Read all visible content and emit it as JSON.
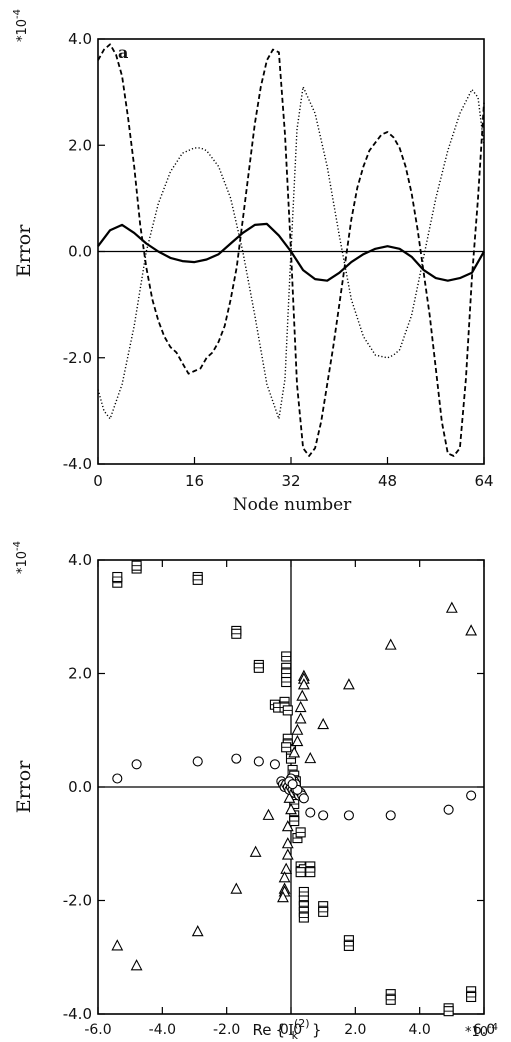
{
  "chart_data": [
    {
      "type": "line",
      "panel_label": "a",
      "xlabel": "Node number",
      "ylabel": "Error",
      "multiplier_label": "*10",
      "multiplier_exp": "-4",
      "xlim": [
        0,
        64
      ],
      "ylim": [
        -4.0,
        4.0
      ],
      "xticks": [
        0,
        16,
        32,
        48,
        64
      ],
      "xtick_labels": [
        "0",
        "16",
        "32",
        "48",
        "64"
      ],
      "yticks": [
        -4.0,
        -2.0,
        0.0,
        2.0,
        4.0
      ],
      "ytick_labels": [
        "-4.0",
        "-2.0",
        "0.0",
        "2.0",
        "4.0"
      ],
      "grid": false,
      "series": [
        {
          "style": "solid",
          "x": [
            0,
            2,
            4,
            6,
            8,
            10,
            12,
            14,
            16,
            18,
            20,
            22,
            24,
            26,
            28,
            30,
            32,
            34,
            36,
            38,
            40,
            42,
            44,
            46,
            48,
            50,
            52,
            54,
            56,
            58,
            60,
            62,
            64
          ],
          "values": [
            0.1,
            0.4,
            0.5,
            0.35,
            0.15,
            0.0,
            -0.12,
            -0.18,
            -0.2,
            -0.15,
            -0.05,
            0.15,
            0.35,
            0.5,
            0.52,
            0.3,
            0.0,
            -0.35,
            -0.52,
            -0.55,
            -0.4,
            -0.2,
            -0.05,
            0.05,
            0.1,
            0.05,
            -0.1,
            -0.35,
            -0.5,
            -0.55,
            -0.5,
            -0.4,
            0.0
          ]
        },
        {
          "style": "dashed",
          "x": [
            0,
            1,
            2,
            3,
            4,
            5,
            6,
            7,
            8,
            9,
            10,
            11,
            12,
            13,
            14,
            15,
            16,
            17,
            18,
            19,
            20,
            21,
            22,
            23,
            24,
            25,
            26,
            27,
            28,
            29,
            30,
            31,
            32,
            33,
            34,
            35,
            36,
            37,
            38,
            39,
            40,
            41,
            42,
            43,
            44,
            45,
            46,
            47,
            48,
            49,
            50,
            51,
            52,
            53,
            54,
            55,
            56,
            57,
            58,
            59,
            60,
            61,
            62,
            63,
            64
          ],
          "values": [
            3.6,
            3.8,
            3.9,
            3.7,
            3.3,
            2.5,
            1.6,
            0.5,
            -0.3,
            -0.9,
            -1.3,
            -1.6,
            -1.8,
            -1.9,
            -2.1,
            -2.3,
            -2.25,
            -2.2,
            -2.0,
            -1.9,
            -1.7,
            -1.4,
            -0.9,
            -0.3,
            0.6,
            1.5,
            2.4,
            3.1,
            3.6,
            3.8,
            3.75,
            2.2,
            0.0,
            -2.5,
            -3.7,
            -3.85,
            -3.7,
            -3.2,
            -2.5,
            -1.8,
            -1.0,
            -0.2,
            0.6,
            1.2,
            1.6,
            1.9,
            2.05,
            2.2,
            2.25,
            2.15,
            1.95,
            1.6,
            1.1,
            0.4,
            -0.4,
            -1.2,
            -2.2,
            -3.2,
            -3.8,
            -3.85,
            -3.7,
            -2.4,
            -0.5,
            1.0,
            2.8
          ]
        },
        {
          "style": "dotted",
          "x": [
            0,
            1,
            2,
            4,
            6,
            8,
            10,
            12,
            14,
            16,
            17,
            18,
            20,
            22,
            24,
            26,
            28,
            30,
            31,
            32,
            33,
            34,
            36,
            38,
            40,
            42,
            44,
            46,
            48,
            49,
            50,
            52,
            54,
            56,
            58,
            60,
            62,
            63,
            64
          ],
          "values": [
            -2.6,
            -3.0,
            -3.15,
            -2.5,
            -1.4,
            0.0,
            0.9,
            1.5,
            1.85,
            1.95,
            1.95,
            1.9,
            1.6,
            1.0,
            0.0,
            -1.2,
            -2.5,
            -3.15,
            -2.4,
            0.0,
            2.3,
            3.1,
            2.6,
            1.6,
            0.3,
            -0.9,
            -1.6,
            -1.95,
            -2.0,
            -1.95,
            -1.85,
            -1.2,
            -0.1,
            1.0,
            1.9,
            2.6,
            3.05,
            2.9,
            2.0
          ]
        }
      ]
    },
    {
      "type": "scatter",
      "xlabel": "Re",
      "xlabel_brace_open": "{",
      "xlabel_brace_close": "}",
      "xlabel_symbol": "I",
      "xlabel_sub": "k",
      "xlabel_sup": "(2)",
      "ylabel": "Error",
      "multiplier_label": "*10",
      "multiplier_exp": "-4",
      "x_multiplier_label": "*10",
      "x_multiplier_exp": "-4",
      "xlim": [
        -6.0,
        6.0
      ],
      "ylim": [
        -4.0,
        4.0
      ],
      "xticks": [
        -6.0,
        -4.0,
        -2.0,
        0.0,
        2.0,
        4.0,
        6.0
      ],
      "xtick_labels": [
        "-6.0",
        "-4.0",
        "-2.0",
        "0.0",
        "2.0",
        "4.0",
        "6.0"
      ],
      "yticks": [
        -4.0,
        -2.0,
        0.0,
        2.0,
        4.0
      ],
      "ytick_labels": [
        "-4.0",
        "-2.0",
        "0.0",
        "2.0",
        "4.0"
      ],
      "grid": false,
      "series": [
        {
          "marker": "square",
          "points": [
            [
              -5.4,
              3.6
            ],
            [
              -5.4,
              3.7
            ],
            [
              -4.8,
              3.85
            ],
            [
              -4.8,
              3.9
            ],
            [
              -2.9,
              3.7
            ],
            [
              -2.9,
              3.65
            ],
            [
              -1.7,
              2.75
            ],
            [
              -1.7,
              2.7
            ],
            [
              -1.0,
              2.15
            ],
            [
              -1.0,
              2.1
            ],
            [
              -0.15,
              2.3
            ],
            [
              -0.15,
              2.1
            ],
            [
              -0.15,
              2.0
            ],
            [
              -0.15,
              1.85
            ],
            [
              -0.5,
              1.45
            ],
            [
              -0.4,
              1.4
            ],
            [
              -0.2,
              1.5
            ],
            [
              -0.2,
              1.4
            ],
            [
              -0.1,
              1.35
            ],
            [
              -0.1,
              0.85
            ],
            [
              -0.1,
              0.75
            ],
            [
              0.0,
              0.65
            ],
            [
              -0.15,
              0.7
            ],
            [
              0.0,
              0.5
            ],
            [
              0.05,
              0.3
            ],
            [
              0.1,
              0.2
            ],
            [
              0.15,
              0.1
            ],
            [
              0.1,
              -0.1
            ],
            [
              0.1,
              -0.3
            ],
            [
              0.1,
              -0.5
            ],
            [
              0.1,
              -0.6
            ],
            [
              0.2,
              -0.9
            ],
            [
              0.3,
              -0.8
            ],
            [
              0.3,
              -1.4
            ],
            [
              0.4,
              -1.45
            ],
            [
              0.3,
              -1.5
            ],
            [
              0.6,
              -1.4
            ],
            [
              0.6,
              -1.5
            ],
            [
              0.4,
              -1.85
            ],
            [
              0.4,
              -2.0
            ],
            [
              0.4,
              -2.1
            ],
            [
              0.4,
              -2.2
            ],
            [
              0.4,
              -2.3
            ],
            [
              1.0,
              -2.1
            ],
            [
              1.0,
              -2.2
            ],
            [
              1.8,
              -2.7
            ],
            [
              1.8,
              -2.8
            ],
            [
              3.1,
              -3.65
            ],
            [
              3.1,
              -3.75
            ],
            [
              4.9,
              -3.9
            ],
            [
              4.9,
              -3.95
            ],
            [
              5.6,
              -3.6
            ],
            [
              5.6,
              -3.7
            ]
          ]
        },
        {
          "marker": "triangle",
          "points": [
            [
              5.0,
              3.15
            ],
            [
              5.6,
              2.75
            ],
            [
              3.1,
              2.5
            ],
            [
              1.8,
              1.8
            ],
            [
              1.0,
              1.1
            ],
            [
              0.6,
              0.5
            ],
            [
              0.4,
              1.95
            ],
            [
              0.4,
              1.9
            ],
            [
              0.4,
              1.8
            ],
            [
              0.35,
              1.6
            ],
            [
              0.3,
              1.4
            ],
            [
              0.3,
              1.2
            ],
            [
              0.2,
              1.0
            ],
            [
              0.2,
              0.8
            ],
            [
              0.1,
              0.6
            ],
            [
              -0.7,
              -0.5
            ],
            [
              -1.1,
              -1.15
            ],
            [
              -1.7,
              -1.8
            ],
            [
              -2.9,
              -2.55
            ],
            [
              -4.8,
              -3.15
            ],
            [
              -5.4,
              -2.8
            ],
            [
              -0.1,
              -0.7
            ],
            [
              -0.1,
              -1.0
            ],
            [
              -0.1,
              -1.2
            ],
            [
              -0.15,
              -1.45
            ],
            [
              -0.2,
              -1.6
            ],
            [
              -0.2,
              -1.8
            ],
            [
              -0.2,
              -1.85
            ],
            [
              -0.25,
              -1.95
            ],
            [
              -0.05,
              -0.2
            ],
            [
              0.0,
              -0.4
            ]
          ]
        },
        {
          "marker": "circle",
          "points": [
            [
              -5.4,
              0.15
            ],
            [
              -4.8,
              0.4
            ],
            [
              -2.9,
              0.45
            ],
            [
              -1.7,
              0.5
            ],
            [
              -1.0,
              0.45
            ],
            [
              -0.5,
              0.4
            ],
            [
              0.6,
              -0.45
            ],
            [
              1.0,
              -0.5
            ],
            [
              1.8,
              -0.5
            ],
            [
              3.1,
              -0.5
            ],
            [
              4.9,
              -0.4
            ],
            [
              5.6,
              -0.15
            ],
            [
              -0.3,
              0.1
            ],
            [
              -0.25,
              0.05
            ],
            [
              -0.2,
              0.0
            ],
            [
              -0.15,
              0.05
            ],
            [
              -0.1,
              0.0
            ],
            [
              -0.05,
              -0.05
            ],
            [
              0.0,
              0.0
            ],
            [
              0.05,
              -0.05
            ],
            [
              0.1,
              -0.1
            ],
            [
              0.15,
              -0.05
            ],
            [
              0.2,
              -0.1
            ],
            [
              0.25,
              -0.15
            ],
            [
              0.3,
              -0.1
            ],
            [
              0.35,
              -0.15
            ],
            [
              0.4,
              -0.2
            ],
            [
              0.1,
              0.1
            ],
            [
              0.15,
              0.05
            ],
            [
              0.2,
              -0.05
            ],
            [
              0.0,
              0.15
            ],
            [
              -0.05,
              0.1
            ],
            [
              0.05,
              0.05
            ]
          ]
        }
      ]
    }
  ]
}
